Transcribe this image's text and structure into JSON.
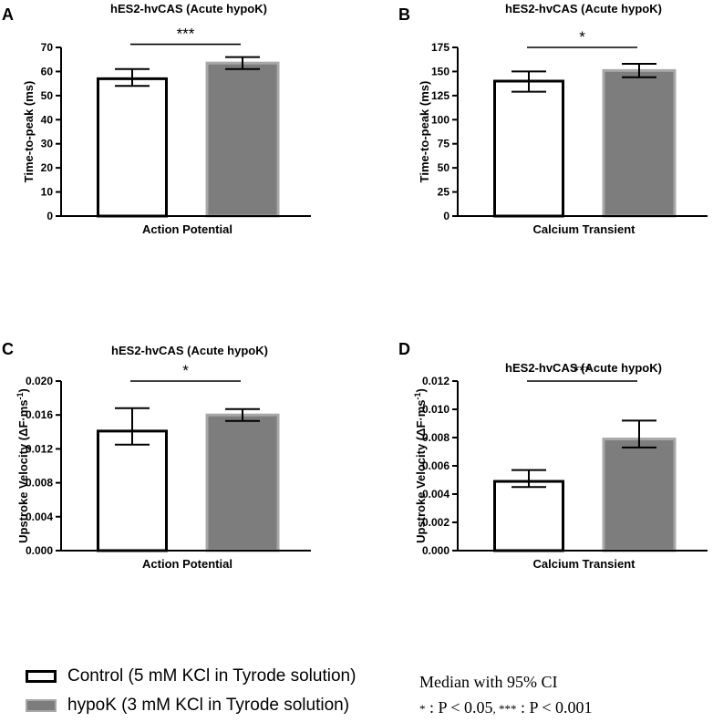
{
  "chart_data": [
    {
      "type": "bar",
      "label": "A",
      "title": "hES2-hvCAS (Acute hypoK)",
      "categories": [
        "Control",
        "hypoK"
      ],
      "xlabel": "Action Potential",
      "ylabel": "Time-to-peak (ms)",
      "ylim": [
        0,
        70
      ],
      "ticks": [
        "0",
        "10",
        "20",
        "30",
        "40",
        "50",
        "60",
        "70"
      ],
      "values": [
        57,
        63.5
      ],
      "ci_low": [
        54,
        61
      ],
      "ci_high": [
        61,
        66
      ],
      "significance": "***"
    },
    {
      "type": "bar",
      "label": "B",
      "title": "hES2-hvCAS (Acute hypoK)",
      "categories": [
        "Control",
        "hypoK"
      ],
      "xlabel": "Calcium Transient",
      "ylabel": "Time-to-peak (ms)",
      "ylim": [
        0,
        175
      ],
      "ticks": [
        "0",
        "25",
        "50",
        "75",
        "100",
        "125",
        "150",
        "175"
      ],
      "values": [
        140,
        151
      ],
      "ci_low": [
        129,
        144
      ],
      "ci_high": [
        150,
        158
      ],
      "significance": "*"
    },
    {
      "type": "bar",
      "label": "C",
      "title": "hES2-hvCAS (Acute hypoK)",
      "categories": [
        "Control",
        "hypoK"
      ],
      "xlabel": "Action Potential",
      "ylabel": "Upstroke Velocity (ΔF·ms",
      "ylabel_sup": "-1",
      "ylabel_end": ")",
      "ylim": [
        0,
        0.02
      ],
      "ticks": [
        "0.000",
        "0.004",
        "0.008",
        "0.012",
        "0.016",
        "0.020"
      ],
      "values": [
        0.0141,
        0.016
      ],
      "ci_low": [
        0.0125,
        0.0153
      ],
      "ci_high": [
        0.0168,
        0.0167
      ],
      "significance": "*"
    },
    {
      "type": "bar",
      "label": "D",
      "title": "hES2-hvCAS (Acute hypoK)",
      "categories": [
        "Control",
        "hypoK"
      ],
      "xlabel": "Calcium Transient",
      "ylabel": "Upstroke Velocity (ΔF·ms",
      "ylabel_sup": "-1",
      "ylabel_end": ")",
      "ylim": [
        0,
        0.012
      ],
      "ticks": [
        "0.000",
        "0.002",
        "0.004",
        "0.006",
        "0.008",
        "0.010",
        "0.012"
      ],
      "values": [
        0.0049,
        0.0079
      ],
      "ci_low": [
        0.0045,
        0.0073
      ],
      "ci_high": [
        0.0057,
        0.0092
      ],
      "significance": "***"
    }
  ],
  "legend": {
    "control_label": "Control (5 mM KCl in Tyrode solution)",
    "hypok_label": "hypoK (3 mM KCl in Tyrode solution)"
  },
  "stats_note": {
    "summary": "Median with 95% CI",
    "sig_star": "*",
    "sig_one": " : P < 0.05",
    "sig_three_star": "***",
    "sig_three": " : P < 0.001"
  },
  "colors": {
    "control_fill": "#ffffff",
    "control_edge": "#000000",
    "hypok_fill": "#7d7d7d",
    "hypok_edge": "#a8a8a8"
  }
}
